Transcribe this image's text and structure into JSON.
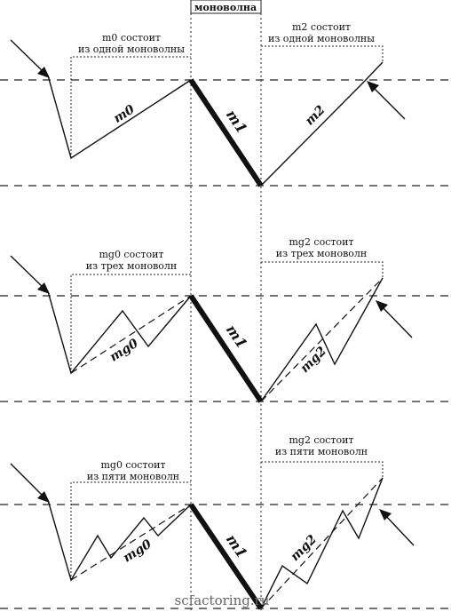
{
  "header_label": "моноволна",
  "watermark": "scfactoring.ru",
  "panels": [
    {
      "left_note": [
        "m0 состоит",
        "из одной моноволны"
      ],
      "right_note": [
        "m2 состоит",
        "из одной моноволны"
      ],
      "left_label": "m0",
      "middle_label": "m1",
      "right_label": "m2"
    },
    {
      "left_note": [
        "mg0 состоит",
        "из трех моноволн"
      ],
      "right_note": [
        "mg2 состоит",
        "из трех моноволн"
      ],
      "left_label": "mg0",
      "middle_label": "m1",
      "right_label": "mg2"
    },
    {
      "left_note": [
        "mg0 состоит",
        "из пяти моноволн"
      ],
      "right_note": [
        "mg2 состоит",
        "из пяти моноволн"
      ],
      "left_label": "mg0",
      "middle_label": "m1",
      "right_label": "mg2"
    }
  ]
}
